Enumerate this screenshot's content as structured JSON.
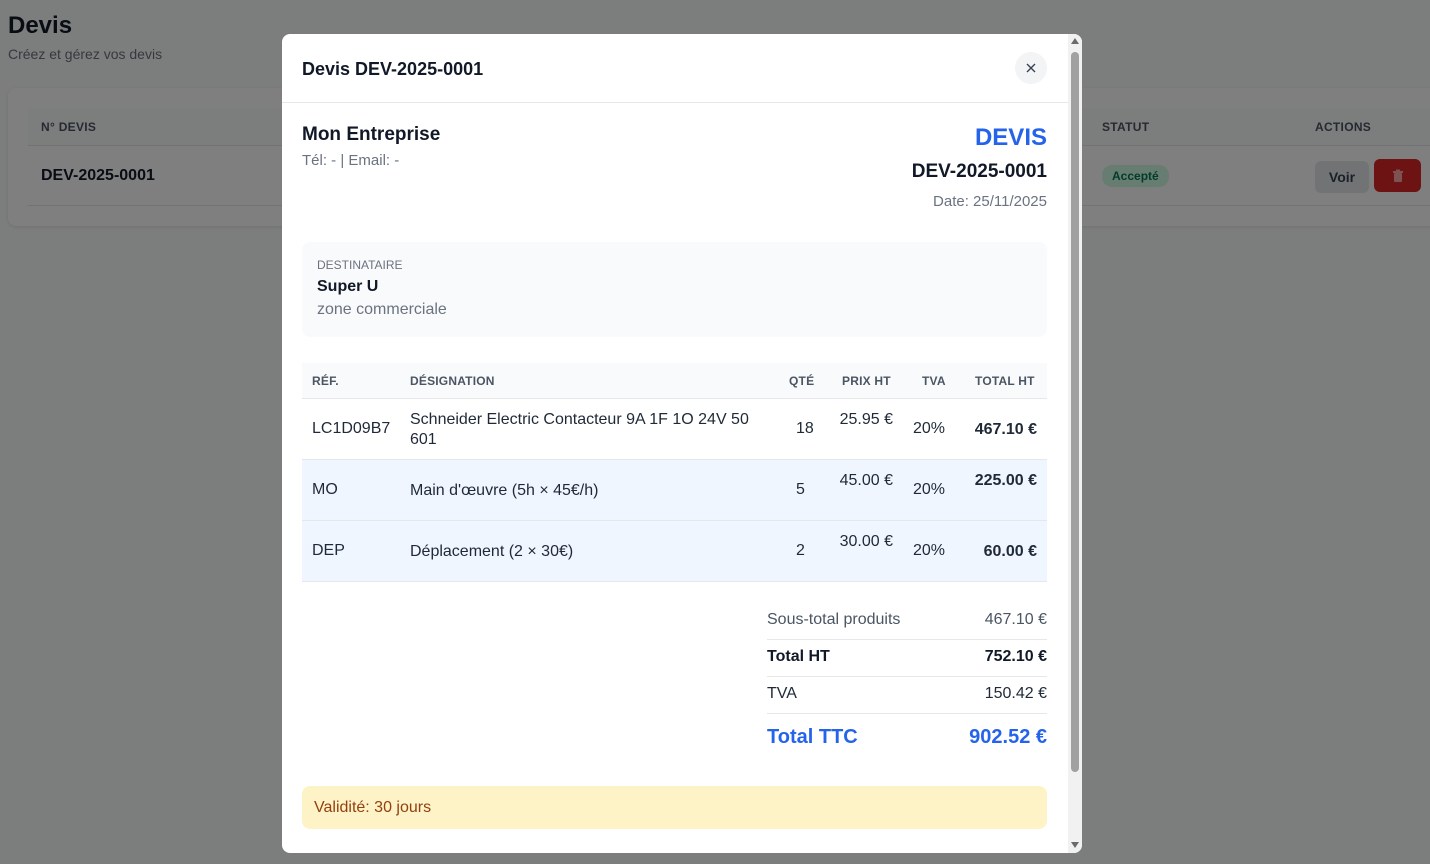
{
  "page": {
    "title": "Devis",
    "subtitle": "Créez et gérez vos devis",
    "columns": {
      "num": "N° DEVIS",
      "statut": "STATUT",
      "actions": "ACTIONS"
    },
    "row": {
      "num": "DEV-2025-0001",
      "status": "Accepté",
      "view_label": "Voir",
      "delete_icon": "trash-icon"
    }
  },
  "modal": {
    "title": "Devis DEV-2025-0001",
    "close_icon": "close-icon",
    "company": {
      "name": "Mon Entreprise",
      "contact": "Tél: - | Email: -"
    },
    "document": {
      "type": "DEVIS",
      "number": "DEV-2025-0001",
      "date": "Date: 25/11/2025"
    },
    "recipient": {
      "label": "DESTINATAIRE",
      "name": "Super U",
      "address": "zone commerciale"
    },
    "table": {
      "headers": {
        "ref": "RÉF.",
        "designation": "DÉSIGNATION",
        "qte": "QTÉ",
        "prix": "PRIX HT",
        "tva": "TVA",
        "total": "TOTAL HT"
      },
      "rows": [
        {
          "ref": "LC1D09B7",
          "designation": "Schneider Electric Contacteur 9A 1F 1O 24V 50 601",
          "qte": "18",
          "prix": "25.95 €",
          "tva": "20%",
          "total": "467.10 €"
        },
        {
          "ref": "MO",
          "designation": "Main d'œuvre (5h × 45€/h)",
          "qte": "5",
          "prix": "45.00 €",
          "tva": "20%",
          "total": "225.00 €"
        },
        {
          "ref": "DEP",
          "designation": "Déplacement (2 × 30€)",
          "qte": "2",
          "prix": "30.00 €",
          "tva": "20%",
          "total": "60.00 €"
        }
      ]
    },
    "totals": {
      "subtotal_label": "Sous-total produits",
      "subtotal": "467.10 €",
      "ht_label": "Total HT",
      "ht": "752.10 €",
      "tva_label": "TVA",
      "tva": "150.42 €",
      "ttc_label": "Total TTC",
      "ttc": "902.52 €"
    },
    "validity": "Validité: 30 jours"
  },
  "colors": {
    "accent": "#2563eb",
    "danger": "#dc2626",
    "success_bg": "#d1fae5",
    "warning_bg": "#fef3c7"
  }
}
